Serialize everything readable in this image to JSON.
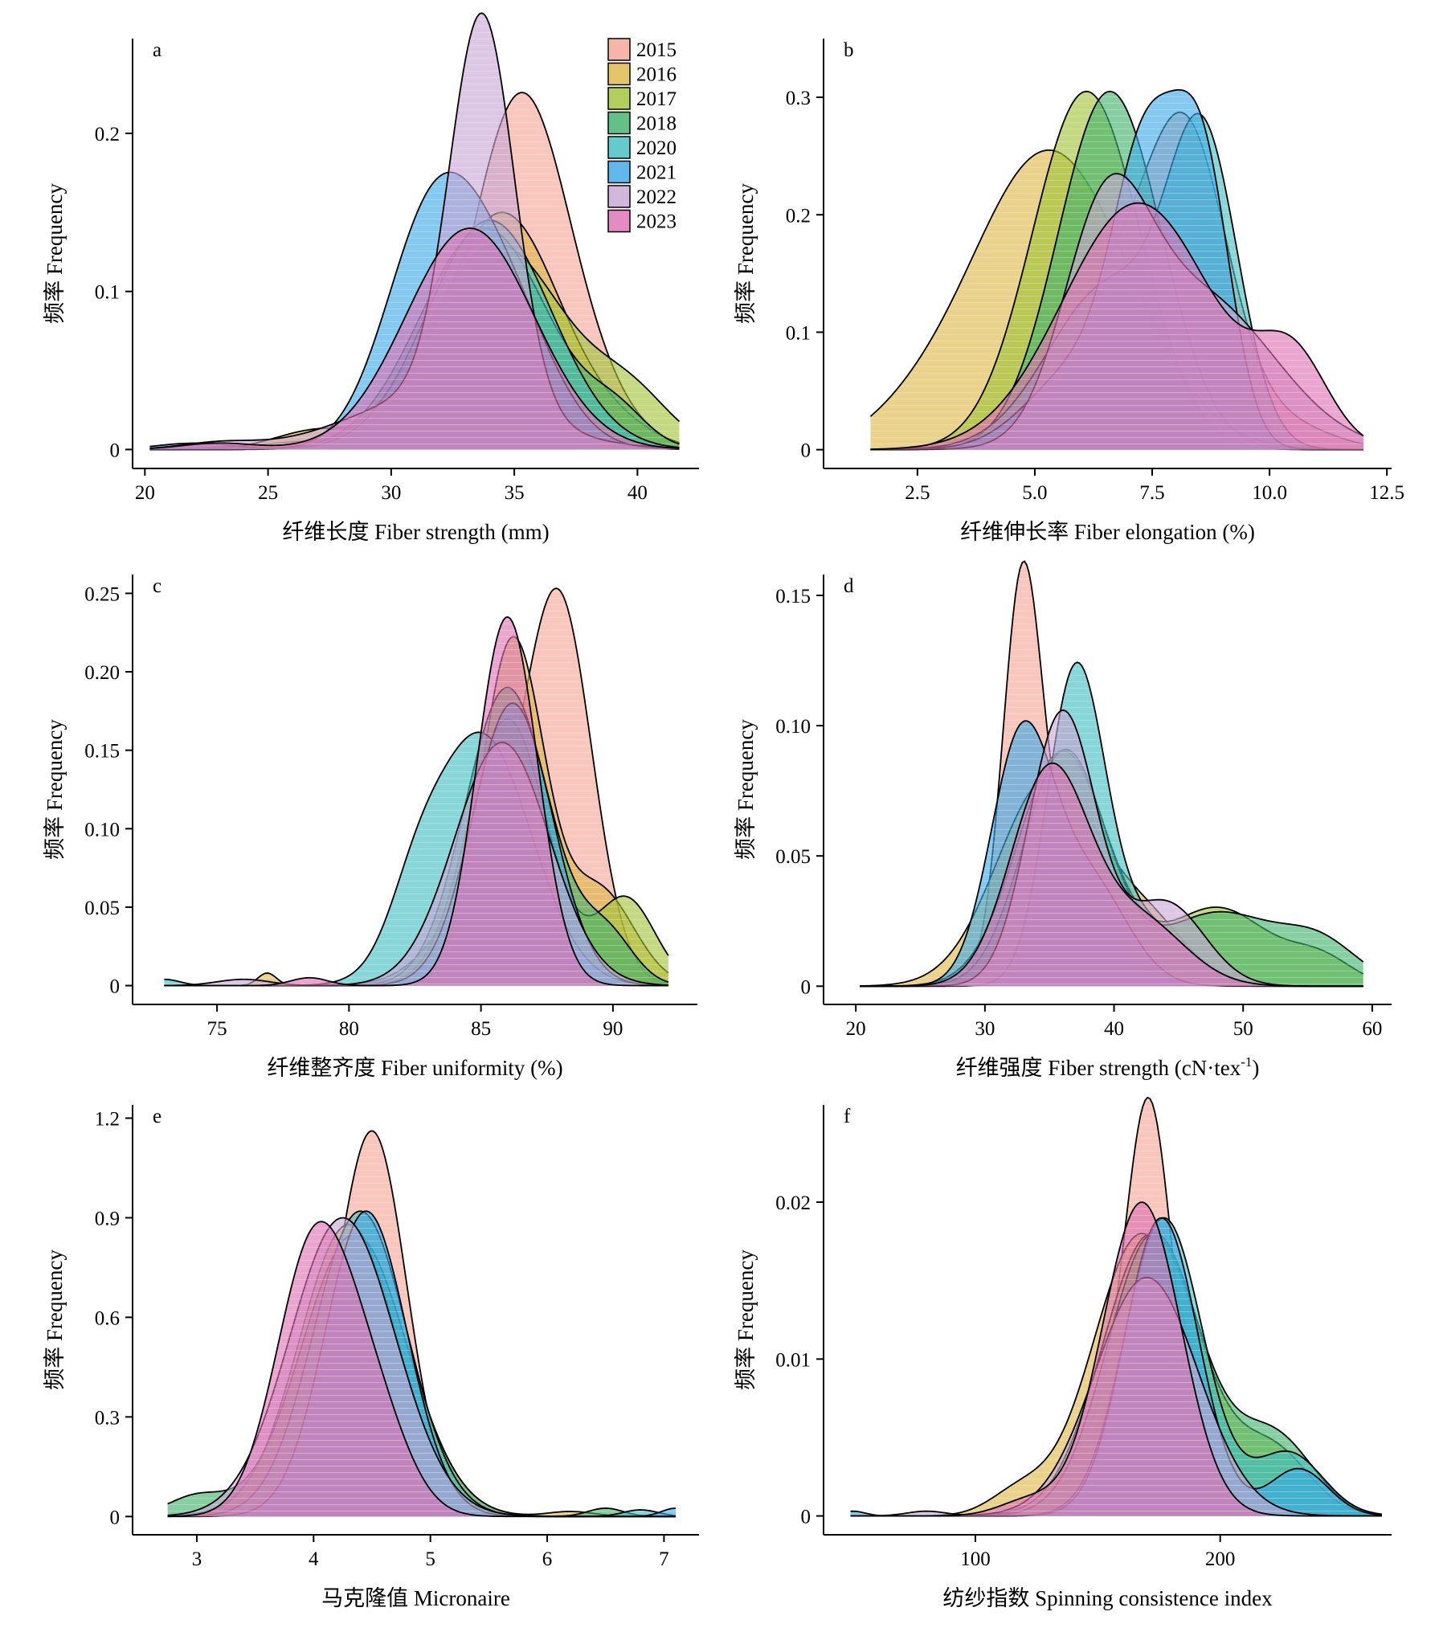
{
  "figure": {
    "panels_order": [
      "a",
      "b",
      "c",
      "d",
      "e",
      "f"
    ]
  },
  "legend": {
    "items": [
      {
        "label": "2015",
        "color": "#F4A393"
      },
      {
        "label": "2016",
        "color": "#DDB645"
      },
      {
        "label": "2017",
        "color": "#9FC236"
      },
      {
        "label": "2018",
        "color": "#3FB06A"
      },
      {
        "label": "2020",
        "color": "#40BDC0"
      },
      {
        "label": "2021",
        "color": "#3AA8E6"
      },
      {
        "label": "2022",
        "color": "#C7A4D3"
      },
      {
        "label": "2023",
        "color": "#DD6FB2"
      }
    ]
  },
  "chart_data": [
    {
      "id": "a",
      "type": "area",
      "letter": "a",
      "xlabel": "纤维长度 Fiber strength (mm)",
      "ylabel": "频率 Frequency",
      "xlim": [
        19.5,
        42.5
      ],
      "ylim": [
        -0.012,
        0.26
      ],
      "xticks": [
        20,
        25,
        30,
        35,
        40
      ],
      "xtick_labels": [
        "20",
        "25",
        "30",
        "35",
        "40"
      ],
      "yticks": [
        0,
        0.1,
        0.2
      ],
      "ytick_labels": [
        "0",
        "0.1",
        "0.2"
      ],
      "x_range": [
        20.2,
        41.7
      ],
      "legend_position": "top-right",
      "series": [
        {
          "name": "2015",
          "peaks": [
            [
              35.3,
              2.0,
              0.225
            ],
            [
              28.0,
              3.0,
              0.006
            ],
            [
              39.0,
              1.5,
              0.012
            ]
          ]
        },
        {
          "name": "2016",
          "peaks": [
            [
              34.5,
              2.4,
              0.15
            ],
            [
              27.0,
              1.7,
              0.012
            ],
            [
              39.5,
              1.5,
              0.008
            ]
          ]
        },
        {
          "name": "2017",
          "peaks": [
            [
              34.3,
              2.8,
              0.13
            ],
            [
              39.8,
              1.6,
              0.028
            ]
          ]
        },
        {
          "name": "2018",
          "peaks": [
            [
              33.8,
              2.6,
              0.14
            ],
            [
              39.2,
              1.2,
              0.018
            ]
          ]
        },
        {
          "name": "2020",
          "peaks": [
            [
              34.0,
              2.5,
              0.145
            ]
          ]
        },
        {
          "name": "2021",
          "peaks": [
            [
              31.6,
              1.9,
              0.135
            ],
            [
              34.5,
              2.0,
              0.09
            ],
            [
              22.0,
              1.5,
              0.004
            ]
          ]
        },
        {
          "name": "2022",
          "peaks": [
            [
              33.7,
              1.3,
              0.245
            ],
            [
              32.0,
              3.5,
              0.035
            ],
            [
              23.0,
              1.5,
              0.004
            ]
          ]
        },
        {
          "name": "2023",
          "peaks": [
            [
              33.2,
              2.6,
              0.14
            ],
            [
              23.0,
              1.5,
              0.004
            ]
          ]
        }
      ]
    },
    {
      "id": "b",
      "type": "area",
      "letter": "b",
      "xlabel": "纤维伸长率 Fiber elongation (%)",
      "ylabel": "频率 Frequency",
      "xlim": [
        0.5,
        12.6
      ],
      "ylim": [
        -0.016,
        0.35
      ],
      "xticks": [
        2.5,
        5.0,
        7.5,
        10.0,
        12.5
      ],
      "xtick_labels": [
        "2.5",
        "5.0",
        "7.5",
        "10.0",
        "12.5"
      ],
      "yticks": [
        0,
        0.1,
        0.2,
        0.3
      ],
      "ytick_labels": [
        "0",
        "0.1",
        "0.2",
        "0.3"
      ],
      "x_range": [
        1.5,
        12.0
      ],
      "legend_position": "none",
      "series": [
        {
          "name": "2015",
          "peaks": [
            [
              8.3,
              0.85,
              0.2
            ],
            [
              6.8,
              1.4,
              0.14
            ],
            [
              10.3,
              1.0,
              0.02
            ]
          ]
        },
        {
          "name": "2016",
          "peaks": [
            [
              5.3,
              1.7,
              0.255
            ],
            [
              2.2,
              0.9,
              0.01
            ]
          ]
        },
        {
          "name": "2017",
          "peaks": [
            [
              6.1,
              1.15,
              0.305
            ]
          ]
        },
        {
          "name": "2018",
          "peaks": [
            [
              6.6,
              1.1,
              0.305
            ]
          ]
        },
        {
          "name": "2020",
          "peaks": [
            [
              8.6,
              0.75,
              0.24
            ],
            [
              6.6,
              1.3,
              0.14
            ]
          ]
        },
        {
          "name": "2021",
          "peaks": [
            [
              7.4,
              0.7,
              0.23
            ],
            [
              8.6,
              0.6,
              0.22
            ],
            [
              6.0,
              1.1,
              0.07
            ]
          ]
        },
        {
          "name": "2022",
          "peaks": [
            [
              6.5,
              0.9,
              0.17
            ],
            [
              8.5,
              1.6,
              0.13
            ]
          ]
        },
        {
          "name": "2023",
          "peaks": [
            [
              7.2,
              1.6,
              0.21
            ],
            [
              10.5,
              0.75,
              0.07
            ]
          ]
        }
      ]
    },
    {
      "id": "c",
      "type": "area",
      "letter": "c",
      "xlabel": "纤维整齐度 Fiber uniformity (%)",
      "ylabel": "频率 Frequency",
      "xlim": [
        71.8,
        93.2
      ],
      "ylim": [
        -0.012,
        0.262
      ],
      "xticks": [
        75,
        80,
        85,
        90
      ],
      "xtick_labels": [
        "75",
        "80",
        "85",
        "90"
      ],
      "yticks": [
        0,
        0.05,
        0.1,
        0.15,
        0.2,
        0.25
      ],
      "ytick_labels": [
        "0",
        "0.05",
        "0.10",
        "0.15",
        "0.20",
        "0.25"
      ],
      "x_range": [
        73.0,
        92.1
      ],
      "legend_position": "none",
      "series": [
        {
          "name": "2015",
          "peaks": [
            [
              88.0,
              1.25,
              0.225
            ],
            [
              85.5,
              1.8,
              0.07
            ]
          ]
        },
        {
          "name": "2016",
          "peaks": [
            [
              86.2,
              1.2,
              0.22
            ],
            [
              89.5,
              1.3,
              0.06
            ],
            [
              76.9,
              0.35,
              0.008
            ]
          ]
        },
        {
          "name": "2017",
          "peaks": [
            [
              86.0,
              1.5,
              0.17
            ],
            [
              90.5,
              1.1,
              0.055
            ]
          ]
        },
        {
          "name": "2018",
          "peaks": [
            [
              86.0,
              1.6,
              0.19
            ],
            [
              89.8,
              1.0,
              0.03
            ]
          ]
        },
        {
          "name": "2020",
          "peaks": [
            [
              85.0,
              1.9,
              0.16
            ],
            [
              82.5,
              1.0,
              0.03
            ],
            [
              73.0,
              0.6,
              0.004
            ]
          ]
        },
        {
          "name": "2021",
          "peaks": [
            [
              86.2,
              1.5,
              0.18
            ]
          ]
        },
        {
          "name": "2022",
          "peaks": [
            [
              85.8,
              1.8,
              0.155
            ],
            [
              76.0,
              1.0,
              0.004
            ]
          ]
        },
        {
          "name": "2023",
          "peaks": [
            [
              86.0,
              1.15,
              0.235
            ],
            [
              78.5,
              0.7,
              0.005
            ]
          ]
        }
      ]
    },
    {
      "id": "d",
      "type": "area",
      "letter": "d",
      "xlabel": "纤维强度 Fiber strength (cN·tex-1)",
      "ylabel": "频率 Frequency",
      "xlim": [
        17.5,
        61.5
      ],
      "ylim": [
        -0.007,
        0.158
      ],
      "xticks": [
        20,
        30,
        40,
        50,
        60
      ],
      "xtick_labels": [
        "20",
        "30",
        "40",
        "50",
        "60"
      ],
      "yticks": [
        0,
        0.05,
        0.1,
        0.15
      ],
      "ytick_labels": [
        "0",
        "0.05",
        "0.10",
        "0.15"
      ],
      "x_range": [
        20.3,
        59.3
      ],
      "legend_position": "none",
      "series": [
        {
          "name": "2015",
          "peaks": [
            [
              32.9,
              1.5,
              0.14
            ],
            [
              37.0,
              3.5,
              0.045
            ],
            [
              44.0,
              2.5,
              0.015
            ]
          ]
        },
        {
          "name": "2016",
          "peaks": [
            [
              35.0,
              4.0,
              0.08
            ],
            [
              43.0,
              3.0,
              0.02
            ]
          ]
        },
        {
          "name": "2017",
          "peaks": [
            [
              36.0,
              3.5,
              0.09
            ],
            [
              48.0,
              4.0,
              0.03
            ],
            [
              56.0,
              2.5,
              0.01
            ]
          ]
        },
        {
          "name": "2018",
          "peaks": [
            [
              36.2,
              3.2,
              0.09
            ],
            [
              48.0,
              4.5,
              0.028
            ],
            [
              56.0,
              3.0,
              0.015
            ]
          ]
        },
        {
          "name": "2020",
          "peaks": [
            [
              37.0,
              2.2,
              0.115
            ],
            [
              42.0,
              3.5,
              0.025
            ]
          ]
        },
        {
          "name": "2021",
          "peaks": [
            [
              32.8,
              2.4,
              0.092
            ],
            [
              38.0,
              3.0,
              0.04
            ]
          ]
        },
        {
          "name": "2022",
          "peaks": [
            [
              36.0,
              2.6,
              0.105
            ],
            [
              44.0,
              3.0,
              0.032
            ]
          ]
        },
        {
          "name": "2023",
          "peaks": [
            [
              35.0,
              3.0,
              0.082
            ],
            [
              42.0,
              3.5,
              0.025
            ]
          ]
        }
      ]
    },
    {
      "id": "e",
      "type": "area",
      "letter": "e",
      "xlabel": "马克隆值 Micronaire",
      "ylabel": "频率 Frequency",
      "xlim": [
        2.45,
        7.3
      ],
      "ylim": [
        -0.055,
        1.24
      ],
      "xticks": [
        3,
        4,
        5,
        6,
        7
      ],
      "xtick_labels": [
        "3",
        "4",
        "5",
        "6",
        "7"
      ],
      "yticks": [
        0,
        0.3,
        0.6,
        0.9,
        1.2
      ],
      "ytick_labels": [
        "0",
        "0.3",
        "0.6",
        "0.9",
        "1.2"
      ],
      "x_range": [
        2.75,
        7.1
      ],
      "legend_position": "none",
      "series": [
        {
          "name": "2015",
          "peaks": [
            [
              4.52,
              0.28,
              0.95
            ],
            [
              4.25,
              0.45,
              0.25
            ]
          ]
        },
        {
          "name": "2016",
          "peaks": [
            [
              4.35,
              0.45,
              0.85
            ],
            [
              6.2,
              0.2,
              0.015
            ]
          ]
        },
        {
          "name": "2017",
          "peaks": [
            [
              4.3,
              0.42,
              0.88
            ]
          ]
        },
        {
          "name": "2018",
          "peaks": [
            [
              4.35,
              0.45,
              0.85
            ],
            [
              3.0,
              0.25,
              0.06
            ],
            [
              6.5,
              0.15,
              0.025
            ]
          ]
        },
        {
          "name": "2020",
          "peaks": [
            [
              4.4,
              0.4,
              0.92
            ],
            [
              6.8,
              0.15,
              0.02
            ]
          ]
        },
        {
          "name": "2021",
          "peaks": [
            [
              4.45,
              0.35,
              0.92
            ],
            [
              7.1,
              0.12,
              0.025
            ]
          ]
        },
        {
          "name": "2022",
          "peaks": [
            [
              4.25,
              0.45,
              0.9
            ]
          ]
        },
        {
          "name": "2023",
          "peaks": [
            [
              4.0,
              0.32,
              0.8
            ],
            [
              4.5,
              0.3,
              0.3
            ]
          ]
        }
      ]
    },
    {
      "id": "f",
      "type": "area",
      "letter": "f",
      "xlabel": "纺纱指数 Spinning consistence index",
      "ylabel": "频率 Frequency",
      "xlim": [
        38,
        270
      ],
      "ylim": [
        -0.0012,
        0.0262
      ],
      "xticks": [
        100,
        200
      ],
      "xtick_labels": [
        "100",
        "200"
      ],
      "yticks": [
        0,
        0.01,
        0.02
      ],
      "ytick_labels": [
        "0",
        "0.01",
        "0.02"
      ],
      "x_range": [
        49,
        266
      ],
      "legend_position": "none",
      "series": [
        {
          "name": "2015",
          "peaks": [
            [
              171,
              9,
              0.019
            ],
            [
              165,
              20,
              0.008
            ]
          ]
        },
        {
          "name": "2016",
          "peaks": [
            [
              168,
              20,
              0.018
            ],
            [
              118,
              12,
              0.0015
            ]
          ]
        },
        {
          "name": "2017",
          "peaks": [
            [
              172,
              20,
              0.018
            ],
            [
              222,
              15,
              0.004
            ]
          ]
        },
        {
          "name": "2018",
          "peaks": [
            [
              173,
              19,
              0.018
            ],
            [
              222,
              16,
              0.005
            ]
          ]
        },
        {
          "name": "2020",
          "peaks": [
            [
              177,
              16,
              0.019
            ],
            [
              228,
              14,
              0.004
            ]
          ]
        },
        {
          "name": "2021",
          "peaks": [
            [
              176,
              15,
              0.019
            ],
            [
              232,
              12,
              0.003
            ],
            [
              50,
              5,
              0.0003
            ]
          ]
        },
        {
          "name": "2022",
          "peaks": [
            [
              170,
              21,
              0.0152
            ],
            [
              80,
              8,
              0.0003
            ]
          ]
        },
        {
          "name": "2023",
          "peaks": [
            [
              168,
              16,
              0.02
            ],
            [
              122,
              12,
              0.001
            ]
          ]
        }
      ]
    }
  ]
}
